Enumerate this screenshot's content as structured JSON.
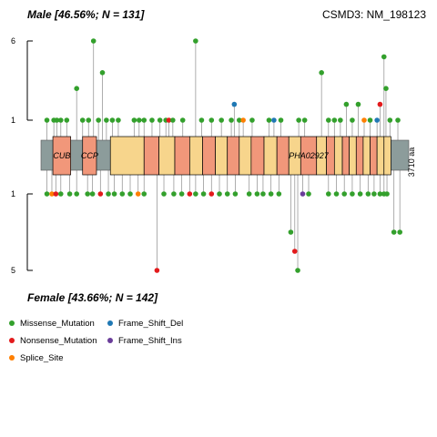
{
  "titles": {
    "top_left": "Male [46.56%; N = 131]",
    "top_right": "CSMD3: NM_198123",
    "bottom_left": "Female [43.66%; N = 142]"
  },
  "legend": [
    {
      "label": "Missense_Mutation",
      "color": "#33a02c"
    },
    {
      "label": "Nonsense_Mutation",
      "color": "#e31a1c"
    },
    {
      "label": "Splice_Site",
      "color": "#ff7f00"
    },
    {
      "label": "Frame_Shift_Del",
      "color": "#1f78b4"
    },
    {
      "label": "Frame_Shift_Ins",
      "color": "#6a3d9a"
    }
  ],
  "chart_data": {
    "type": "lollipop",
    "gene": "CSMD3",
    "transcript": "NM_198123",
    "protein_length_label": "3710 aa",
    "protein_length": 3710,
    "top_axis": {
      "ticks": [
        "6",
        "1"
      ],
      "values": [
        6,
        1
      ]
    },
    "bottom_axis": {
      "ticks": [
        "1",
        "5"
      ],
      "values": [
        1,
        5
      ]
    },
    "domains": [
      {
        "label": "CUB",
        "start": 120,
        "end": 300,
        "color": "#f1977a"
      },
      {
        "label": "CCP",
        "start": 420,
        "end": 560,
        "color": "#f1977a"
      },
      {
        "label": "",
        "start": 700,
        "end": 1040,
        "color": "#f7d58c"
      },
      {
        "label": "",
        "start": 1040,
        "end": 1190,
        "color": "#f1977a"
      },
      {
        "label": "",
        "start": 1190,
        "end": 1350,
        "color": "#f7d58c"
      },
      {
        "label": "",
        "start": 1350,
        "end": 1500,
        "color": "#f1977a"
      },
      {
        "label": "",
        "start": 1500,
        "end": 1630,
        "color": "#f7d58c"
      },
      {
        "label": "",
        "start": 1630,
        "end": 1760,
        "color": "#f1977a"
      },
      {
        "label": "",
        "start": 1760,
        "end": 1880,
        "color": "#f7d58c"
      },
      {
        "label": "",
        "start": 1880,
        "end": 2000,
        "color": "#f1977a"
      },
      {
        "label": "",
        "start": 2000,
        "end": 2120,
        "color": "#f7d58c"
      },
      {
        "label": "",
        "start": 2120,
        "end": 2250,
        "color": "#f1977a"
      },
      {
        "label": "",
        "start": 2250,
        "end": 2380,
        "color": "#f7d58c"
      },
      {
        "label": "",
        "start": 2380,
        "end": 2500,
        "color": "#f1977a"
      },
      {
        "label": "",
        "start": 2500,
        "end": 2620,
        "color": "#f7d58c"
      },
      {
        "label": "PHA02927",
        "start": 2620,
        "end": 2780,
        "color": "#f1977a"
      },
      {
        "label": "",
        "start": 2780,
        "end": 2880,
        "color": "#f7d58c"
      },
      {
        "label": "",
        "start": 2880,
        "end": 2960,
        "color": "#f1977a"
      },
      {
        "label": "",
        "start": 2960,
        "end": 3040,
        "color": "#f7d58c"
      },
      {
        "label": "",
        "start": 3040,
        "end": 3110,
        "color": "#f1977a"
      },
      {
        "label": "",
        "start": 3110,
        "end": 3180,
        "color": "#f7d58c"
      },
      {
        "label": "",
        "start": 3180,
        "end": 3250,
        "color": "#f1977a"
      },
      {
        "label": "",
        "start": 3250,
        "end": 3320,
        "color": "#f7d58c"
      },
      {
        "label": "",
        "start": 3320,
        "end": 3390,
        "color": "#f1977a"
      },
      {
        "label": "",
        "start": 3390,
        "end": 3460,
        "color": "#f7d58c"
      },
      {
        "label": "",
        "start": 3460,
        "end": 3530,
        "color": "#f7d58c"
      }
    ],
    "top_mutations": [
      {
        "pos": 60,
        "count": 1,
        "type": "Missense_Mutation"
      },
      {
        "pos": 130,
        "count": 1,
        "type": "Missense_Mutation"
      },
      {
        "pos": 160,
        "count": 1,
        "type": "Missense_Mutation"
      },
      {
        "pos": 200,
        "count": 1,
        "type": "Missense_Mutation"
      },
      {
        "pos": 260,
        "count": 1,
        "type": "Missense_Mutation"
      },
      {
        "pos": 360,
        "count": 3,
        "type": "Missense_Mutation"
      },
      {
        "pos": 420,
        "count": 1,
        "type": "Missense_Mutation"
      },
      {
        "pos": 480,
        "count": 1,
        "type": "Missense_Mutation"
      },
      {
        "pos": 530,
        "count": 6,
        "type": "Missense_Mutation"
      },
      {
        "pos": 580,
        "count": 1,
        "type": "Missense_Mutation"
      },
      {
        "pos": 620,
        "count": 4,
        "type": "Missense_Mutation"
      },
      {
        "pos": 660,
        "count": 1,
        "type": "Missense_Mutation"
      },
      {
        "pos": 720,
        "count": 1,
        "type": "Missense_Mutation"
      },
      {
        "pos": 780,
        "count": 1,
        "type": "Missense_Mutation"
      },
      {
        "pos": 940,
        "count": 1,
        "type": "Missense_Mutation"
      },
      {
        "pos": 990,
        "count": 1,
        "type": "Missense_Mutation"
      },
      {
        "pos": 1040,
        "count": 1,
        "type": "Missense_Mutation"
      },
      {
        "pos": 1120,
        "count": 1,
        "type": "Missense_Mutation"
      },
      {
        "pos": 1200,
        "count": 1,
        "type": "Missense_Mutation"
      },
      {
        "pos": 1260,
        "count": 1,
        "type": "Missense_Mutation"
      },
      {
        "pos": 1290,
        "count": 1,
        "type": "Nonsense_Mutation"
      },
      {
        "pos": 1330,
        "count": 1,
        "type": "Missense_Mutation"
      },
      {
        "pos": 1430,
        "count": 1,
        "type": "Missense_Mutation"
      },
      {
        "pos": 1560,
        "count": 6,
        "type": "Missense_Mutation"
      },
      {
        "pos": 1620,
        "count": 1,
        "type": "Missense_Mutation"
      },
      {
        "pos": 1720,
        "count": 1,
        "type": "Missense_Mutation"
      },
      {
        "pos": 1820,
        "count": 1,
        "type": "Missense_Mutation"
      },
      {
        "pos": 1920,
        "count": 1,
        "type": "Missense_Mutation"
      },
      {
        "pos": 1950,
        "count": 2,
        "type": "Frame_Shift_Del"
      },
      {
        "pos": 2000,
        "count": 1,
        "type": "Missense_Mutation"
      },
      {
        "pos": 2040,
        "count": 1,
        "type": "Splice_Site"
      },
      {
        "pos": 2130,
        "count": 1,
        "type": "Missense_Mutation"
      },
      {
        "pos": 2300,
        "count": 1,
        "type": "Missense_Mutation"
      },
      {
        "pos": 2350,
        "count": 1,
        "type": "Frame_Shift_Del"
      },
      {
        "pos": 2420,
        "count": 1,
        "type": "Missense_Mutation"
      },
      {
        "pos": 2600,
        "count": 1,
        "type": "Missense_Mutation"
      },
      {
        "pos": 2660,
        "count": 1,
        "type": "Missense_Mutation"
      },
      {
        "pos": 2830,
        "count": 4,
        "type": "Missense_Mutation"
      },
      {
        "pos": 2900,
        "count": 1,
        "type": "Missense_Mutation"
      },
      {
        "pos": 2960,
        "count": 1,
        "type": "Missense_Mutation"
      },
      {
        "pos": 3020,
        "count": 1,
        "type": "Missense_Mutation"
      },
      {
        "pos": 3080,
        "count": 2,
        "type": "Missense_Mutation"
      },
      {
        "pos": 3140,
        "count": 1,
        "type": "Missense_Mutation"
      },
      {
        "pos": 3200,
        "count": 2,
        "type": "Missense_Mutation"
      },
      {
        "pos": 3260,
        "count": 1,
        "type": "Splice_Site"
      },
      {
        "pos": 3320,
        "count": 1,
        "type": "Missense_Mutation"
      },
      {
        "pos": 3390,
        "count": 1,
        "type": "Frame_Shift_Del"
      },
      {
        "pos": 3420,
        "count": 2,
        "type": "Nonsense_Mutation"
      },
      {
        "pos": 3460,
        "count": 5,
        "type": "Missense_Mutation"
      },
      {
        "pos": 3480,
        "count": 3,
        "type": "Missense_Mutation"
      },
      {
        "pos": 3520,
        "count": 1,
        "type": "Missense_Mutation"
      },
      {
        "pos": 3600,
        "count": 1,
        "type": "Missense_Mutation"
      }
    ],
    "bottom_mutations": [
      {
        "pos": 60,
        "count": 1,
        "type": "Missense_Mutation"
      },
      {
        "pos": 110,
        "count": 1,
        "type": "Splice_Site"
      },
      {
        "pos": 150,
        "count": 1,
        "type": "Nonsense_Mutation"
      },
      {
        "pos": 200,
        "count": 1,
        "type": "Missense_Mutation"
      },
      {
        "pos": 290,
        "count": 1,
        "type": "Missense_Mutation"
      },
      {
        "pos": 360,
        "count": 1,
        "type": "Missense_Mutation"
      },
      {
        "pos": 470,
        "count": 1,
        "type": "Missense_Mutation"
      },
      {
        "pos": 520,
        "count": 1,
        "type": "Missense_Mutation"
      },
      {
        "pos": 600,
        "count": 1,
        "type": "Nonsense_Mutation"
      },
      {
        "pos": 680,
        "count": 1,
        "type": "Missense_Mutation"
      },
      {
        "pos": 740,
        "count": 1,
        "type": "Missense_Mutation"
      },
      {
        "pos": 820,
        "count": 1,
        "type": "Missense_Mutation"
      },
      {
        "pos": 900,
        "count": 1,
        "type": "Missense_Mutation"
      },
      {
        "pos": 980,
        "count": 1,
        "type": "Splice_Site"
      },
      {
        "pos": 1040,
        "count": 1,
        "type": "Missense_Mutation"
      },
      {
        "pos": 1170,
        "count": 5,
        "type": "Nonsense_Mutation"
      },
      {
        "pos": 1240,
        "count": 1,
        "type": "Missense_Mutation"
      },
      {
        "pos": 1340,
        "count": 1,
        "type": "Missense_Mutation"
      },
      {
        "pos": 1420,
        "count": 1,
        "type": "Missense_Mutation"
      },
      {
        "pos": 1500,
        "count": 1,
        "type": "Nonsense_Mutation"
      },
      {
        "pos": 1560,
        "count": 1,
        "type": "Missense_Mutation"
      },
      {
        "pos": 1640,
        "count": 1,
        "type": "Missense_Mutation"
      },
      {
        "pos": 1720,
        "count": 1,
        "type": "Nonsense_Mutation"
      },
      {
        "pos": 1800,
        "count": 1,
        "type": "Missense_Mutation"
      },
      {
        "pos": 1880,
        "count": 1,
        "type": "Missense_Mutation"
      },
      {
        "pos": 1960,
        "count": 1,
        "type": "Missense_Mutation"
      },
      {
        "pos": 2100,
        "count": 1,
        "type": "Missense_Mutation"
      },
      {
        "pos": 2180,
        "count": 1,
        "type": "Missense_Mutation"
      },
      {
        "pos": 2240,
        "count": 1,
        "type": "Missense_Mutation"
      },
      {
        "pos": 2320,
        "count": 1,
        "type": "Missense_Mutation"
      },
      {
        "pos": 2400,
        "count": 1,
        "type": "Missense_Mutation"
      },
      {
        "pos": 2520,
        "count": 3,
        "type": "Missense_Mutation"
      },
      {
        "pos": 2560,
        "count": 4,
        "type": "Nonsense_Mutation"
      },
      {
        "pos": 2590,
        "count": 5,
        "type": "Missense_Mutation"
      },
      {
        "pos": 2640,
        "count": 1,
        "type": "Frame_Shift_Ins"
      },
      {
        "pos": 2700,
        "count": 1,
        "type": "Missense_Mutation"
      },
      {
        "pos": 2900,
        "count": 1,
        "type": "Missense_Mutation"
      },
      {
        "pos": 2980,
        "count": 1,
        "type": "Missense_Mutation"
      },
      {
        "pos": 3060,
        "count": 1,
        "type": "Missense_Mutation"
      },
      {
        "pos": 3140,
        "count": 1,
        "type": "Missense_Mutation"
      },
      {
        "pos": 3220,
        "count": 1,
        "type": "Missense_Mutation"
      },
      {
        "pos": 3300,
        "count": 1,
        "type": "Missense_Mutation"
      },
      {
        "pos": 3360,
        "count": 1,
        "type": "Missense_Mutation"
      },
      {
        "pos": 3420,
        "count": 1,
        "type": "Missense_Mutation"
      },
      {
        "pos": 3460,
        "count": 1,
        "type": "Missense_Mutation"
      },
      {
        "pos": 3490,
        "count": 1,
        "type": "Missense_Mutation"
      },
      {
        "pos": 3560,
        "count": 3,
        "type": "Missense_Mutation"
      },
      {
        "pos": 3620,
        "count": 3,
        "type": "Missense_Mutation"
      }
    ]
  }
}
